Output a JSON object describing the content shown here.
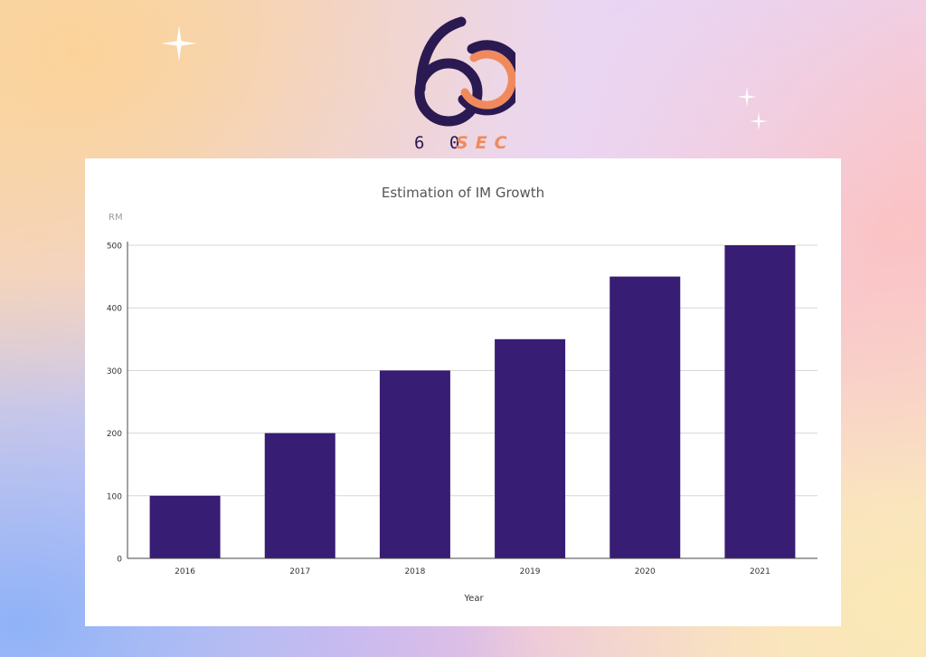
{
  "brand": {
    "logo_text": "60SEC"
  },
  "decorations": {
    "sparkle_color": "#ffffff",
    "sparkle_icon": "four-point-star"
  },
  "colors": {
    "bar": "#371d73",
    "grid": "#d6d6d6",
    "axis": "#444444",
    "title": "#555555",
    "unit": "#9a9a9a",
    "logo_dark": "#2b1a52",
    "logo_accent": "#f08a5d"
  },
  "chart_data": {
    "type": "bar",
    "title": "Estimation of IM Growth",
    "unit_label": "RM",
    "xlabel": "Year",
    "ylabel": "",
    "categories": [
      "2016",
      "2017",
      "2018",
      "2019",
      "2020",
      "2021"
    ],
    "values": [
      100,
      200,
      300,
      350,
      450,
      500
    ],
    "ylim": [
      0,
      500
    ],
    "yticks": [
      0,
      100,
      200,
      300,
      400,
      500
    ],
    "grid": true,
    "legend": "none"
  }
}
